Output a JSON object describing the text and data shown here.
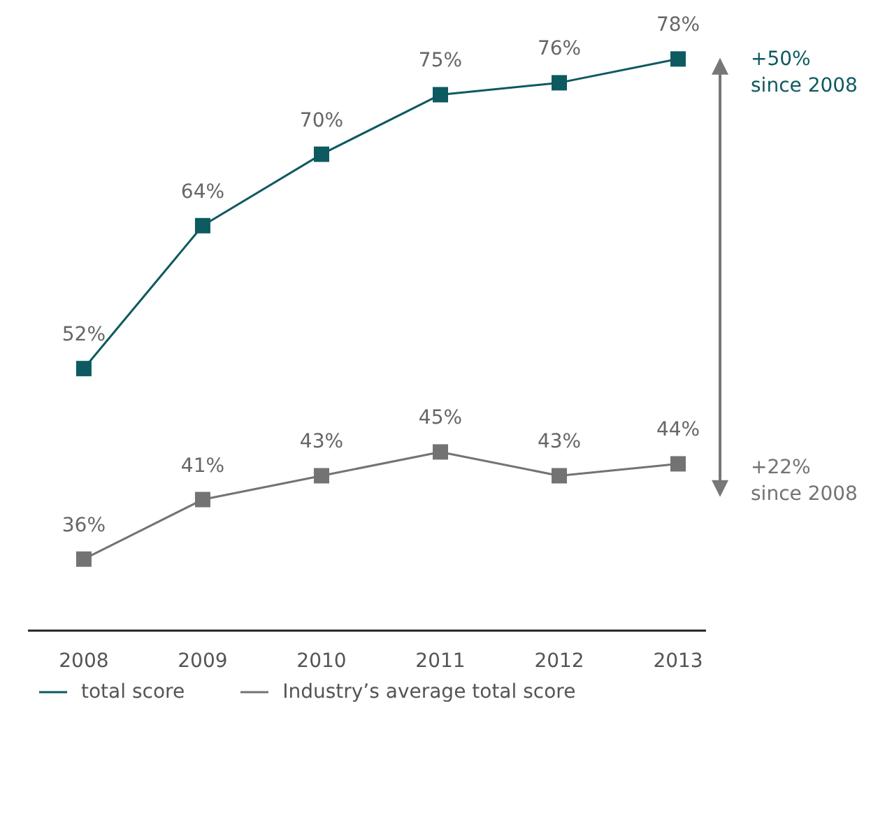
{
  "chart_data": {
    "type": "line",
    "categories": [
      "2008",
      "2009",
      "2010",
      "2011",
      "2012",
      "2013"
    ],
    "series": [
      {
        "name": "total score",
        "color": "#0d5a60",
        "values": [
          52,
          64,
          70,
          75,
          76,
          78
        ],
        "value_labels": [
          "52%",
          "64%",
          "70%",
          "75%",
          "76%",
          "78%"
        ]
      },
      {
        "name": "Industry’s average total score",
        "color": "#737373",
        "values": [
          36,
          41,
          43,
          45,
          43,
          44
        ],
        "value_labels": [
          "36%",
          "41%",
          "43%",
          "45%",
          "43%",
          "44%"
        ]
      }
    ],
    "marker": "square",
    "line_style": "solid",
    "legend": "bottom",
    "tick_labels": "x",
    "annotations": [
      "+50% since 2008",
      "+22% since 2008"
    ]
  }
}
